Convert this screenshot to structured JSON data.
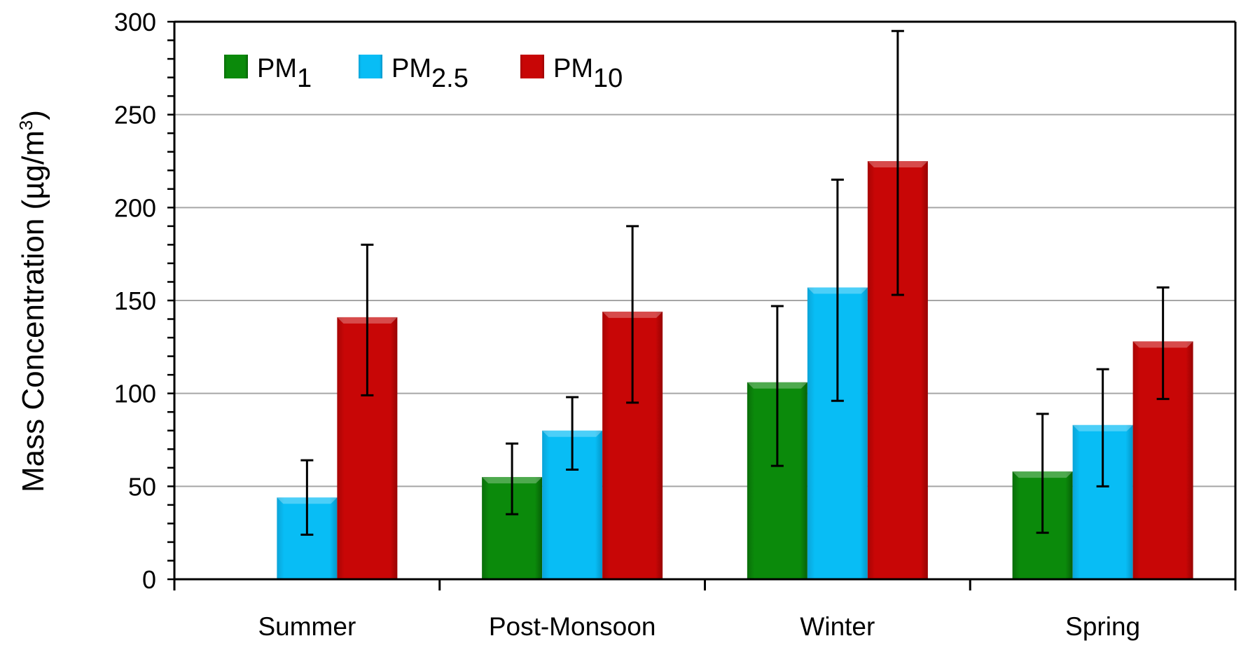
{
  "chart_data": {
    "type": "bar",
    "title": "",
    "xlabel": "",
    "ylabel": "Mass Concentration (µg/m",
    "ylabel_sup": "3",
    "ylabel_close": ")",
    "ylim": [
      0,
      300
    ],
    "yticks": [
      "0",
      "50",
      "100",
      "150",
      "200",
      "250",
      "300"
    ],
    "ytick_values": [
      0,
      50,
      100,
      150,
      200,
      250,
      300
    ],
    "grid": true,
    "legend_position": "top-left",
    "categories": [
      "Summer",
      "Post-Monsoon",
      "Winter",
      "Spring"
    ],
    "series": [
      {
        "name": "PM1",
        "legend_base": "PM",
        "legend_sub": "1",
        "color": "#0b8a0b",
        "values": [
          null,
          55,
          106,
          58
        ],
        "error_high": [
          null,
          73,
          147,
          89
        ],
        "error_low": [
          null,
          35,
          61,
          25
        ]
      },
      {
        "name": "PM2.5",
        "legend_base": "PM",
        "legend_sub": "2.5",
        "color": "#08bdf5",
        "values": [
          44,
          80,
          157,
          83
        ],
        "error_high": [
          64,
          98,
          215,
          113
        ],
        "error_low": [
          24,
          59,
          96,
          50
        ]
      },
      {
        "name": "PM10",
        "legend_base": "PM",
        "legend_sub": "10",
        "color": "#c80606",
        "values": [
          141,
          144,
          225,
          128
        ],
        "error_high": [
          180,
          190,
          295,
          157
        ],
        "error_low": [
          99,
          95,
          153,
          97
        ]
      }
    ]
  }
}
